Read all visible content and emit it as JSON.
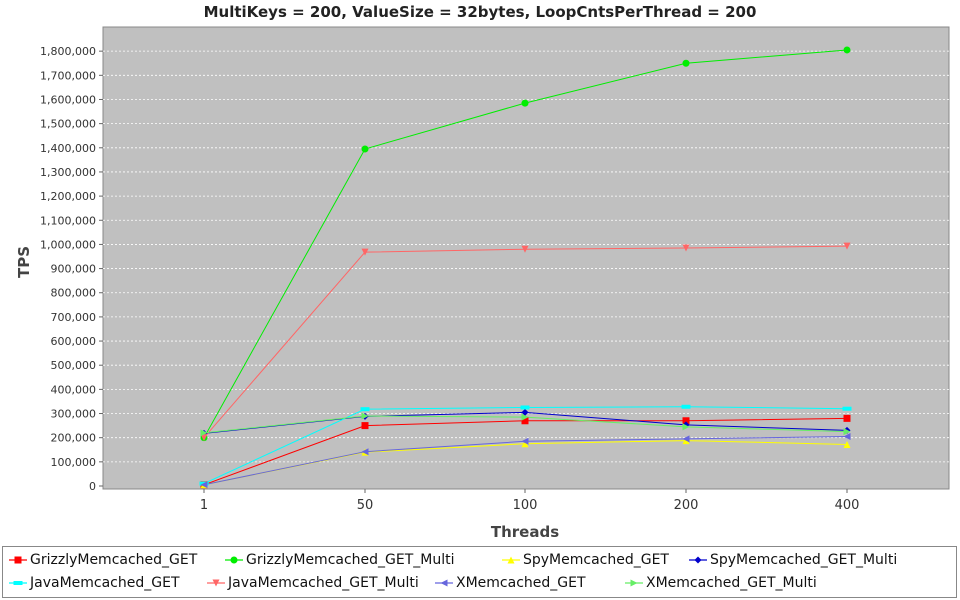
{
  "chart_data": {
    "type": "line",
    "title": "MultiKeys = 200, ValueSize = 32bytes, LoopCntsPerThread = 200",
    "xlabel": "Threads",
    "ylabel": "TPS",
    "categories": [
      "1",
      "50",
      "100",
      "200",
      "400"
    ],
    "ylim": [
      0,
      1900000
    ],
    "yticks": [
      "0",
      "100,000",
      "200,000",
      "300,000",
      "400,000",
      "500,000",
      "600,000",
      "700,000",
      "800,000",
      "900,000",
      "1,000,000",
      "1,100,000",
      "1,200,000",
      "1,300,000",
      "1,400,000",
      "1,500,000",
      "1,600,000",
      "1,700,000",
      "1,800,000"
    ],
    "grid": true,
    "legend_position": "bottom",
    "series": [
      {
        "name": "GrizzlyMemcached_GET",
        "color": "#ff0000",
        "marker": "square",
        "values": [
          5000,
          250000,
          270000,
          270000,
          280000
        ]
      },
      {
        "name": "GrizzlyMemcached_GET_Multi",
        "color": "#00ee00",
        "marker": "circle",
        "values": [
          200000,
          1395000,
          1585000,
          1750000,
          1805000
        ]
      },
      {
        "name": "SpyMemcached_GET",
        "color": "#ffff00",
        "marker": "triangle-up",
        "values": [
          5000,
          140000,
          175000,
          188000,
          172000
        ]
      },
      {
        "name": "SpyMemcached_GET_Multi",
        "color": "#0000cc",
        "marker": "diamond",
        "values": [
          218000,
          288000,
          305000,
          253000,
          230000
        ]
      },
      {
        "name": "JavaMemcached_GET",
        "color": "#00ffff",
        "marker": "rect",
        "values": [
          10000,
          318000,
          325000,
          328000,
          320000
        ]
      },
      {
        "name": "JavaMemcached_GET_Multi",
        "color": "#ff6666",
        "marker": "triangle-down",
        "values": [
          200000,
          968000,
          980000,
          985000,
          993000
        ]
      },
      {
        "name": "XMemcached_GET",
        "color": "#6666dd",
        "marker": "triangle-left",
        "values": [
          5000,
          142000,
          185000,
          195000,
          205000
        ]
      },
      {
        "name": "XMemcached_GET_Multi",
        "color": "#66ee66",
        "marker": "triangle-right",
        "values": [
          220000,
          290000,
          285000,
          245000,
          225000
        ]
      }
    ]
  }
}
